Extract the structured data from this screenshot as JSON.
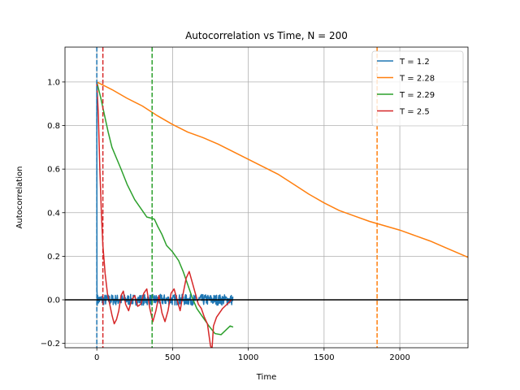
{
  "chart_data": {
    "type": "line",
    "title": "Autocorrelation vs Time, N = 200",
    "xlabel": "Time",
    "ylabel": "Autocorrelation",
    "xlim": [
      -210,
      2450
    ],
    "ylim": [
      -0.22,
      1.16
    ],
    "xticks": [
      0,
      500,
      1000,
      1500,
      2000
    ],
    "yticks": [
      -0.2,
      0.0,
      0.2,
      0.4,
      0.6,
      0.8,
      1.0
    ],
    "ytick_labels": [
      "−0.2",
      "0.0",
      "0.2",
      "0.4",
      "0.6",
      "0.8",
      "1.0"
    ],
    "grid": true,
    "legend_position": "top-right",
    "zero_line": 0,
    "series": [
      {
        "name": "T = 1.2",
        "color": "#1f77b4",
        "noisy": true,
        "noise_amplitude": 0.025,
        "noise_range": [
          3,
          900
        ],
        "x": [
          0,
          1,
          3
        ],
        "y": [
          1.0,
          0.05,
          0.0
        ],
        "cutoff": 0
      },
      {
        "name": "T = 2.28",
        "color": "#ff7f0e",
        "x": [
          0,
          100,
          200,
          300,
          400,
          500,
          600,
          700,
          800,
          900,
          1000,
          1100,
          1200,
          1300,
          1400,
          1500,
          1600,
          1700,
          1800,
          1900,
          2000,
          2100,
          2200,
          2300,
          2400,
          2450
        ],
        "y": [
          1.0,
          0.965,
          0.925,
          0.89,
          0.845,
          0.805,
          0.77,
          0.745,
          0.715,
          0.68,
          0.645,
          0.61,
          0.575,
          0.53,
          0.485,
          0.445,
          0.41,
          0.385,
          0.36,
          0.34,
          0.32,
          0.295,
          0.27,
          0.24,
          0.21,
          0.195
        ],
        "cutoff": 1850
      },
      {
        "name": "T = 2.29",
        "color": "#2ca02c",
        "x": [
          0,
          25,
          50,
          75,
          100,
          130,
          160,
          200,
          250,
          300,
          330,
          360,
          380,
          400,
          430,
          460,
          500,
          540,
          570,
          600,
          630,
          660,
          700,
          740,
          780,
          820,
          850,
          880,
          900
        ],
        "y": [
          1.0,
          0.93,
          0.85,
          0.77,
          0.7,
          0.65,
          0.6,
          0.53,
          0.46,
          0.41,
          0.38,
          0.375,
          0.37,
          0.34,
          0.3,
          0.25,
          0.22,
          0.18,
          0.13,
          0.07,
          0.01,
          -0.04,
          -0.08,
          -0.12,
          -0.155,
          -0.16,
          -0.14,
          -0.12,
          -0.125
        ],
        "cutoff": 365
      },
      {
        "name": "T = 2.5",
        "color": "#d62728",
        "x": [
          0,
          10,
          20,
          30,
          40,
          55,
          70,
          85,
          100,
          115,
          130,
          145,
          160,
          175,
          190,
          210,
          230,
          250,
          270,
          290,
          310,
          330,
          350,
          370,
          390,
          410,
          430,
          450,
          470,
          490,
          510,
          530,
          550,
          570,
          590,
          610,
          630,
          650,
          670,
          690,
          710,
          730,
          750,
          760,
          770,
          790,
          810,
          830,
          860,
          890
        ],
        "y": [
          1.0,
          0.85,
          0.6,
          0.4,
          0.25,
          0.12,
          0.03,
          -0.02,
          -0.07,
          -0.11,
          -0.09,
          -0.05,
          0.02,
          0.04,
          -0.02,
          -0.05,
          0.0,
          0.02,
          -0.03,
          -0.02,
          0.03,
          0.05,
          -0.04,
          -0.1,
          -0.05,
          0.02,
          -0.06,
          -0.1,
          -0.05,
          0.03,
          0.05,
          0.0,
          -0.05,
          0.03,
          0.1,
          0.13,
          0.08,
          0.03,
          -0.02,
          -0.04,
          -0.08,
          -0.11,
          -0.21,
          -0.23,
          -0.12,
          -0.08,
          -0.06,
          -0.04,
          -0.02,
          0.0
        ],
        "cutoff": 40
      }
    ]
  }
}
